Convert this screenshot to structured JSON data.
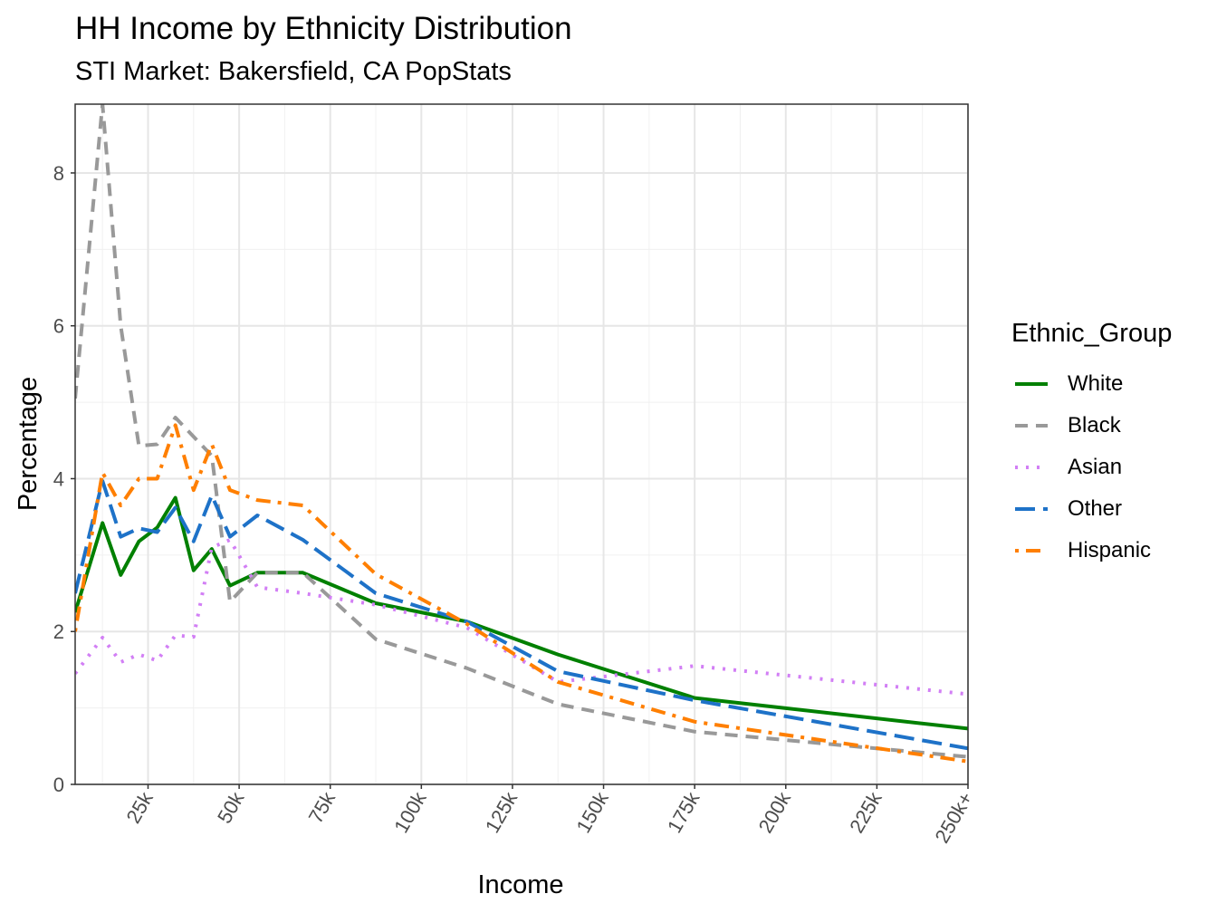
{
  "chart_data": {
    "type": "line",
    "title": "HH Income by Ethnicity Distribution",
    "subtitle": "STI Market: Bakersfield, CA PopStats",
    "xlabel": "Income",
    "ylabel": "Percentage",
    "x": [
      5,
      12.5,
      17.5,
      22.5,
      27.5,
      32.5,
      37.5,
      42.5,
      47.5,
      55,
      67.5,
      87.5,
      112.5,
      137.5,
      175,
      250
    ],
    "xlim": [
      5,
      250
    ],
    "ylim": [
      0,
      8.9
    ],
    "x_ticks": [
      25,
      50,
      75,
      100,
      125,
      150,
      175,
      200,
      225,
      250
    ],
    "x_tick_labels": [
      "25k",
      "50k",
      "75k",
      "100k",
      "125k",
      "150k",
      "175k",
      "200k",
      "225k",
      "250k+"
    ],
    "y_ticks": [
      0,
      2,
      4,
      6,
      8
    ],
    "y_tick_labels": [
      "0",
      "2",
      "4",
      "6",
      "8"
    ],
    "grid": true,
    "legend_title": "Ethnic_Group",
    "legend_position": "right",
    "series": [
      {
        "name": "White",
        "color": "#008000",
        "dash": "solid",
        "values": [
          2.25,
          3.42,
          2.74,
          3.18,
          3.36,
          3.75,
          2.8,
          3.08,
          2.6,
          2.77,
          2.77,
          2.37,
          2.13,
          1.7,
          1.13,
          0.73
        ]
      },
      {
        "name": "Black",
        "color": "#999999",
        "dash": "dashed",
        "values": [
          5.05,
          8.9,
          6.0,
          4.43,
          4.45,
          4.8,
          4.55,
          4.3,
          2.39,
          2.77,
          2.77,
          1.9,
          1.52,
          1.05,
          0.69,
          0.36
        ]
      },
      {
        "name": "Asian",
        "color": "#D27FF5",
        "dash": "dotted",
        "values": [
          1.45,
          1.92,
          1.6,
          1.7,
          1.62,
          1.95,
          1.93,
          3.1,
          3.2,
          2.58,
          2.5,
          2.35,
          2.05,
          1.34,
          1.55,
          1.18
        ]
      },
      {
        "name": "Other",
        "color": "#1E72C8",
        "dash": "longdash",
        "values": [
          2.5,
          3.97,
          3.24,
          3.35,
          3.3,
          3.62,
          3.18,
          3.78,
          3.24,
          3.52,
          3.2,
          2.5,
          2.13,
          1.48,
          1.1,
          0.47
        ]
      },
      {
        "name": "Hispanic",
        "color": "#FF7F00",
        "dash": "dotdash",
        "values": [
          2.0,
          4.08,
          3.65,
          4.0,
          4.0,
          4.7,
          3.85,
          4.45,
          3.85,
          3.72,
          3.65,
          2.75,
          2.1,
          1.34,
          0.82,
          0.3
        ]
      }
    ]
  }
}
